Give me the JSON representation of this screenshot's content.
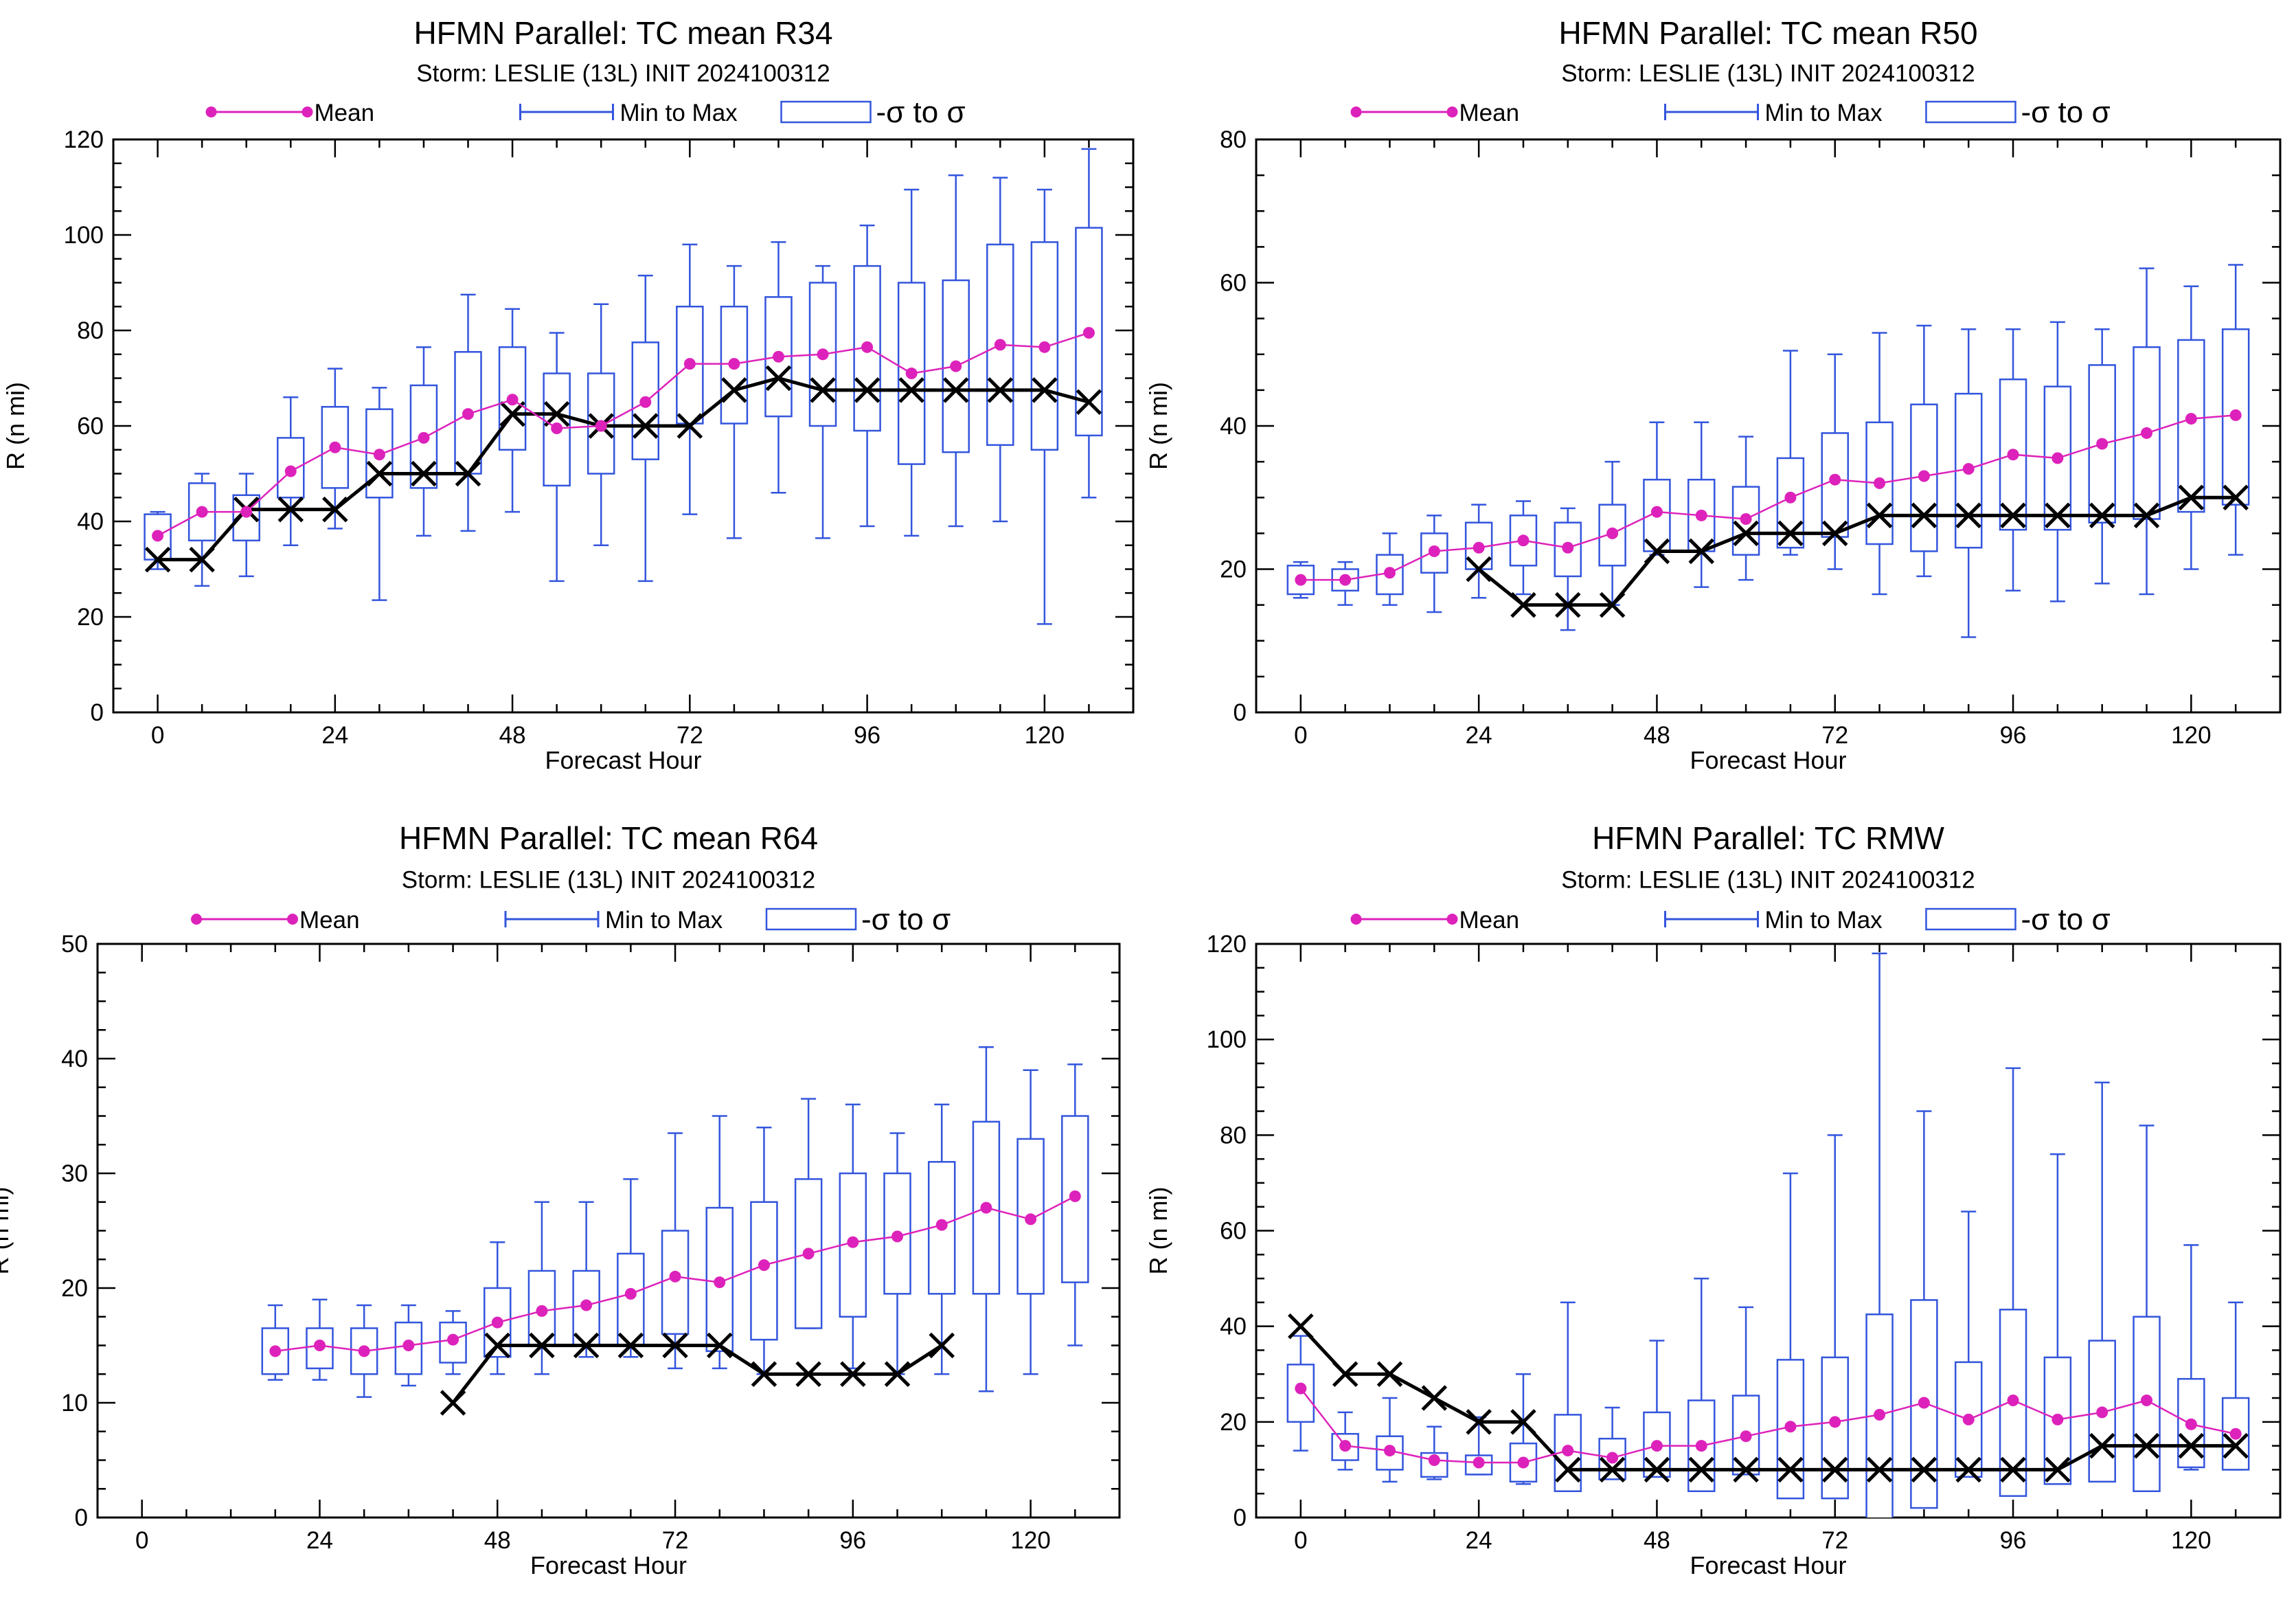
{
  "legend": {
    "mean_label": "Mean",
    "minmax_label": "Min to Max",
    "sigma_label": "-σ to σ"
  },
  "colors": {
    "mean": "#dd22bb",
    "box": "#3355dd",
    "best_track": "#000000"
  },
  "chart_data": [
    {
      "type": "box",
      "title": "HFMN Parallel: TC mean R34",
      "subtitle": "Storm: LESLIE (13L) INIT 2024100312",
      "xlabel": "Forecast Hour",
      "ylabel": "R (n mi)",
      "xlim": [
        -6,
        132
      ],
      "ylim": [
        0,
        120
      ],
      "xticks": [
        0,
        24,
        48,
        72,
        96,
        120
      ],
      "yticks": [
        0,
        20,
        40,
        60,
        80,
        100,
        120
      ],
      "hours": [
        0,
        6,
        12,
        18,
        24,
        30,
        36,
        42,
        48,
        54,
        60,
        66,
        72,
        78,
        84,
        90,
        96,
        102,
        108,
        114,
        120,
        126
      ],
      "mean": [
        37,
        42,
        42,
        50.5,
        55.5,
        54,
        57.5,
        62.5,
        65.5,
        59.5,
        60,
        65,
        73,
        73,
        74.5,
        75,
        76.5,
        71,
        72.5,
        77,
        76.5,
        79.5
      ],
      "sigma_low": [
        32,
        36,
        36,
        45,
        47,
        45,
        47,
        50,
        55,
        47.5,
        50,
        53,
        60.5,
        60.5,
        62,
        60,
        59,
        52,
        54.5,
        56,
        55,
        58
      ],
      "sigma_high": [
        41.5,
        48,
        45.5,
        57.5,
        64,
        63.5,
        68.5,
        75.5,
        76.5,
        71,
        71,
        77.5,
        85,
        85,
        87,
        90,
        93.5,
        90,
        90.5,
        98,
        98.5,
        101.5
      ],
      "min": [
        30,
        26.5,
        28.5,
        35,
        38.5,
        23.5,
        37,
        38,
        42,
        27.5,
        35,
        27.5,
        41.5,
        36.5,
        46,
        36.5,
        39,
        37,
        39,
        40,
        18.5,
        45
      ],
      "max": [
        42,
        50,
        50,
        66,
        72,
        68,
        76.5,
        87.5,
        84.5,
        79.5,
        85.5,
        91.5,
        98,
        93.5,
        98.5,
        93.5,
        102,
        109.5,
        112.5,
        112,
        109.5,
        118
      ],
      "best_track": [
        32,
        32,
        42.5,
        42.5,
        42.5,
        50,
        50,
        50,
        62.5,
        62.5,
        60,
        60,
        60,
        67.5,
        70,
        67.5,
        67.5,
        67.5,
        67.5,
        67.5,
        67.5,
        65
      ]
    },
    {
      "type": "box",
      "title": "HFMN Parallel: TC mean R50",
      "subtitle": "Storm: LESLIE (13L) INIT 2024100312",
      "xlabel": "Forecast Hour",
      "ylabel": "R (n mi)",
      "xlim": [
        -6,
        132
      ],
      "ylim": [
        0,
        80
      ],
      "xticks": [
        0,
        24,
        48,
        72,
        96,
        120
      ],
      "yticks": [
        0,
        20,
        40,
        60,
        80
      ],
      "hours": [
        0,
        6,
        12,
        18,
        24,
        30,
        36,
        42,
        48,
        54,
        60,
        66,
        72,
        78,
        84,
        90,
        96,
        102,
        108,
        114,
        120,
        126
      ],
      "mean": [
        18.5,
        18.5,
        19.5,
        22.5,
        23,
        24,
        23,
        25,
        28,
        27.5,
        27,
        30,
        32.5,
        32,
        33,
        34,
        36,
        35.5,
        37.5,
        39,
        41,
        41.5
      ],
      "sigma_low": [
        16.5,
        17,
        16.5,
        19.5,
        20,
        20.5,
        19,
        20.5,
        22.5,
        22.5,
        22,
        23,
        24.5,
        23.5,
        22.5,
        23,
        25.5,
        25.5,
        26.5,
        27,
        28,
        29
      ],
      "sigma_high": [
        20.5,
        20,
        22,
        25,
        26.5,
        27.5,
        26.5,
        29,
        32.5,
        32.5,
        31.5,
        35.5,
        39,
        40.5,
        43,
        44.5,
        46.5,
        45.5,
        48.5,
        51,
        52,
        53.5
      ],
      "min": [
        16,
        15,
        15,
        14,
        16,
        16.5,
        11.5,
        15,
        22,
        17.5,
        18.5,
        22,
        20,
        16.5,
        19,
        10.5,
        17,
        15.5,
        18,
        16.5,
        20,
        22
      ],
      "max": [
        21,
        21,
        25,
        27.5,
        29,
        29.5,
        28.5,
        35,
        40.5,
        40.5,
        38.5,
        50.5,
        50,
        53,
        54,
        53.5,
        53.5,
        54.5,
        53.5,
        62,
        59.5,
        62.5
      ],
      "best_track": [
        null,
        null,
        null,
        null,
        20,
        15,
        15,
        15,
        22.5,
        22.5,
        25,
        25,
        25,
        27.5,
        27.5,
        27.5,
        27.5,
        27.5,
        27.5,
        27.5,
        30,
        30
      ]
    },
    {
      "type": "box",
      "title": "HFMN Parallel: TC mean R64",
      "subtitle": "Storm: LESLIE (13L) INIT 2024100312",
      "xlabel": "Forecast Hour",
      "ylabel": "R (n mi)",
      "xlim": [
        -6,
        132
      ],
      "ylim": [
        0,
        50
      ],
      "xticks": [
        0,
        24,
        48,
        72,
        96,
        120
      ],
      "yticks": [
        0,
        10,
        20,
        30,
        40,
        50
      ],
      "hours": [
        18,
        24,
        30,
        36,
        42,
        48,
        54,
        60,
        66,
        72,
        78,
        84,
        90,
        96,
        102,
        108,
        114,
        120,
        126
      ],
      "mean": [
        14.5,
        15,
        14.5,
        15,
        15.5,
        17,
        18,
        18.5,
        19.5,
        21,
        20.5,
        22,
        23,
        24,
        24.5,
        25.5,
        27,
        26,
        28
      ],
      "sigma_low": [
        12.5,
        13,
        12.5,
        12.5,
        13.5,
        14,
        15,
        15,
        15,
        16,
        14.5,
        15.5,
        16.5,
        17.5,
        19.5,
        19.5,
        19.5,
        19.5,
        20.5
      ],
      "sigma_high": [
        16.5,
        16.5,
        16.5,
        17,
        17,
        20,
        21.5,
        21.5,
        23,
        25,
        27,
        27.5,
        29.5,
        30,
        30,
        31,
        34.5,
        33,
        35
      ],
      "min": [
        12,
        12,
        10.5,
        11.5,
        12.5,
        12.5,
        12.5,
        14,
        14,
        13,
        13,
        12.5,
        16.5,
        13,
        12.5,
        12.5,
        11,
        12.5,
        15
      ],
      "max": [
        18.5,
        19,
        18.5,
        18.5,
        18,
        24,
        27.5,
        27.5,
        29.5,
        33.5,
        35,
        34,
        36.5,
        36,
        33.5,
        36,
        41,
        39,
        39.5
      ],
      "best_track": [
        null,
        null,
        null,
        null,
        10,
        15,
        15,
        15,
        15,
        15,
        15,
        12.5,
        12.5,
        12.5,
        12.5,
        15,
        null,
        null,
        null
      ]
    },
    {
      "type": "box",
      "title": "HFMN Parallel: TC RMW",
      "subtitle": "Storm: LESLIE (13L) INIT 2024100312",
      "xlabel": "Forecast Hour",
      "ylabel": "R (n mi)",
      "xlim": [
        -6,
        132
      ],
      "ylim": [
        0,
        120
      ],
      "xticks": [
        0,
        24,
        48,
        72,
        96,
        120
      ],
      "yticks": [
        0,
        20,
        40,
        60,
        80,
        100,
        120
      ],
      "hours": [
        0,
        6,
        12,
        18,
        24,
        30,
        36,
        42,
        48,
        54,
        60,
        66,
        72,
        78,
        84,
        90,
        96,
        102,
        108,
        114,
        120,
        126
      ],
      "mean": [
        27,
        15,
        14,
        12,
        11.5,
        11.5,
        14,
        12.5,
        15,
        15,
        17,
        19,
        20,
        21.5,
        24,
        20.5,
        24.5,
        20.5,
        22,
        24.5,
        19.5,
        17.5
      ],
      "sigma_low": [
        20,
        12,
        10,
        8.5,
        9,
        7.5,
        5.5,
        8,
        8.5,
        5.5,
        9,
        4,
        4,
        -2,
        2,
        8.5,
        4.5,
        7,
        7.5,
        5.5,
        10.5,
        10
      ],
      "sigma_high": [
        32,
        17.5,
        17,
        13.5,
        13,
        15.5,
        21.5,
        16.5,
        22,
        24.5,
        25.5,
        33,
        33.5,
        42.5,
        45.5,
        32.5,
        43.5,
        33.5,
        37,
        42,
        29,
        25
      ],
      "min": [
        14,
        10,
        7.5,
        8,
        9,
        7,
        9,
        9,
        8.5,
        10,
        10,
        9,
        10,
        9,
        9,
        9,
        9,
        9,
        9,
        9,
        10,
        10
      ],
      "max": [
        38,
        22,
        25,
        19,
        21,
        30,
        45,
        23,
        37,
        50,
        44,
        72,
        80,
        118,
        85,
        64,
        94,
        76,
        91,
        82,
        57,
        45
      ],
      "best_track": [
        40,
        30,
        30,
        25,
        20,
        20,
        10,
        10,
        10,
        10,
        10,
        10,
        10,
        10,
        10,
        10,
        10,
        10,
        15,
        15,
        15,
        15
      ]
    }
  ]
}
